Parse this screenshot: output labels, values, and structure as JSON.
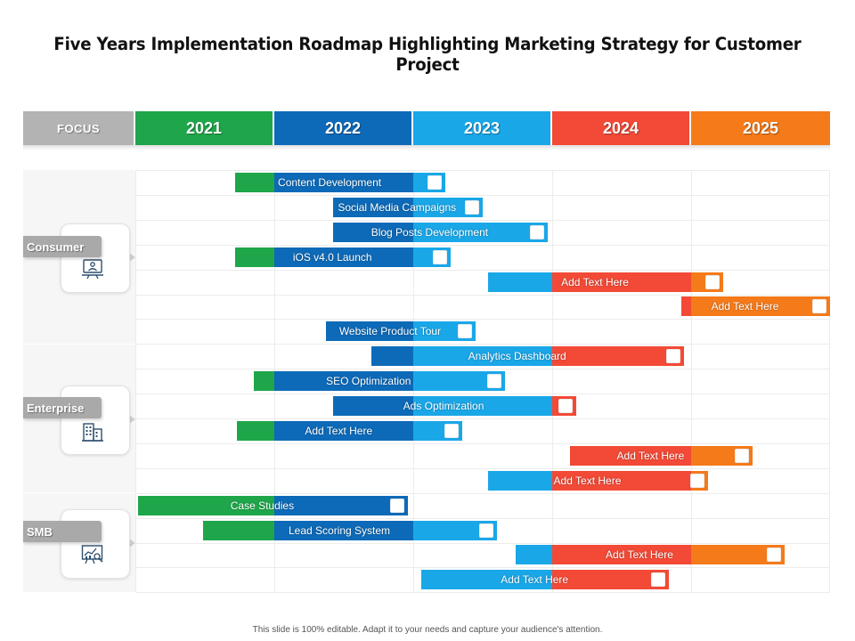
{
  "title": "Five Years Implementation Roadmap Highlighting Marketing Strategy for Customer Project",
  "footer": "This slide is 100% editable. Adapt it to your needs and capture your audience's attention.",
  "colors": {
    "focus": "#b3b3b3",
    "y2021": "#1fa64a",
    "y2022": "#0d6ab8",
    "y2023": "#1aa7e8",
    "y2024": "#f24a36",
    "y2025": "#f47a1a"
  },
  "chart_data": {
    "type": "gantt",
    "title": "Five Years Implementation Roadmap Highlighting Marketing Strategy for Customer Project",
    "header": {
      "focus_label": "FOCUS",
      "years": [
        "2021",
        "2022",
        "2023",
        "2024",
        "2025"
      ]
    },
    "year_range": [
      2021,
      2026
    ],
    "categories": [
      {
        "name": "Consumer",
        "icon": "presenter-monitor-icon",
        "rows": [
          0,
          6
        ]
      },
      {
        "name": "Enterprise",
        "icon": "office-building-icon",
        "rows": [
          7,
          12
        ]
      },
      {
        "name": "SMB",
        "icon": "analytics-chart-icon",
        "rows": [
          13,
          16
        ]
      }
    ],
    "tasks": [
      {
        "label": "Content Development",
        "start": 2021.72,
        "end": 2023.23,
        "category": "Consumer"
      },
      {
        "label": "Social Media Campaigns",
        "start": 2022.42,
        "end": 2023.5,
        "category": "Consumer"
      },
      {
        "label": "Blog Posts Development",
        "start": 2022.42,
        "end": 2023.97,
        "category": "Consumer"
      },
      {
        "label": "iOS v4.0 Launch",
        "start": 2021.72,
        "end": 2023.27,
        "category": "Consumer"
      },
      {
        "label": "Add Text Here",
        "start": 2023.54,
        "end": 2025.23,
        "category": "Consumer"
      },
      {
        "label": "Add Text Here",
        "start": 2024.93,
        "end": 2026.0,
        "category": "Consumer"
      },
      {
        "label": "Website Product Tour",
        "start": 2022.37,
        "end": 2023.45,
        "category": "Consumer"
      },
      {
        "label": "Analytics Dashboard",
        "start": 2022.7,
        "end": 2024.95,
        "category": "Enterprise"
      },
      {
        "label": "SEO Optimization",
        "start": 2021.85,
        "end": 2023.66,
        "category": "Enterprise"
      },
      {
        "label": "Ads Optimization",
        "start": 2022.42,
        "end": 2024.17,
        "category": "Enterprise"
      },
      {
        "label": "Add Text Here",
        "start": 2021.73,
        "end": 2023.35,
        "category": "Enterprise"
      },
      {
        "label": "Add Text Here",
        "start": 2024.13,
        "end": 2025.44,
        "category": "Enterprise"
      },
      {
        "label": "Add Text Here",
        "start": 2023.54,
        "end": 2025.12,
        "category": "Enterprise"
      },
      {
        "label": "Case Studies",
        "start": 2021.02,
        "end": 2022.96,
        "category": "SMB"
      },
      {
        "label": "Lead Scoring System",
        "start": 2021.49,
        "end": 2023.6,
        "category": "SMB"
      },
      {
        "label": "Add Text Here",
        "start": 2023.74,
        "end": 2025.67,
        "category": "SMB"
      },
      {
        "label": "Add Text Here",
        "start": 2023.06,
        "end": 2024.84,
        "category": "SMB"
      }
    ]
  }
}
